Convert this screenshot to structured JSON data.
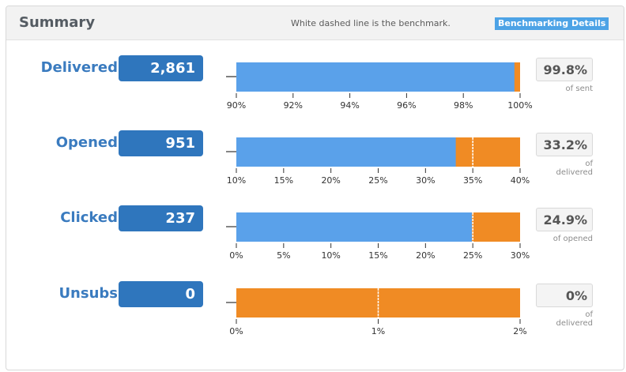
{
  "header": {
    "title": "Summary",
    "benchmark_note": "White dashed line is the benchmark.",
    "details_label": "Benchmarking Details"
  },
  "colors": {
    "bar_fill": "#5aa1ea",
    "bar_remainder": "#f08b24",
    "benchmark_line": "#ffffff",
    "count_badge": "#2f76bd",
    "label_text": "#3a7bbf"
  },
  "chart_data": [
    {
      "type": "bar",
      "orientation": "horizontal",
      "title": "Delivered",
      "count": "2,861",
      "value": 99.8,
      "value_label": "99.8%",
      "caption": [
        "of sent"
      ],
      "xlim": [
        90,
        100
      ],
      "benchmark": null,
      "tick_labels": [
        "90%",
        "92%",
        "94%",
        "96%",
        "98%",
        "100%"
      ]
    },
    {
      "type": "bar",
      "orientation": "horizontal",
      "title": "Opened",
      "count": "951",
      "value": 33.2,
      "value_label": "33.2%",
      "caption": [
        "of",
        "delivered"
      ],
      "xlim": [
        10,
        40
      ],
      "benchmark": 35,
      "tick_labels": [
        "10%",
        "15%",
        "20%",
        "25%",
        "30%",
        "35%",
        "40%"
      ]
    },
    {
      "type": "bar",
      "orientation": "horizontal",
      "title": "Clicked",
      "count": "237",
      "value": 24.9,
      "value_label": "24.9%",
      "caption": [
        "of opened"
      ],
      "xlim": [
        0,
        30
      ],
      "benchmark": 25,
      "tick_labels": [
        "0%",
        "5%",
        "10%",
        "15%",
        "20%",
        "25%",
        "30%"
      ]
    },
    {
      "type": "bar",
      "orientation": "horizontal",
      "title": "Unsubs",
      "count": "0",
      "value": 0,
      "value_label": "0%",
      "caption": [
        "of",
        "delivered"
      ],
      "xlim": [
        0,
        2
      ],
      "benchmark": 1,
      "tick_labels": [
        "0%",
        "1%",
        "2%"
      ]
    }
  ]
}
